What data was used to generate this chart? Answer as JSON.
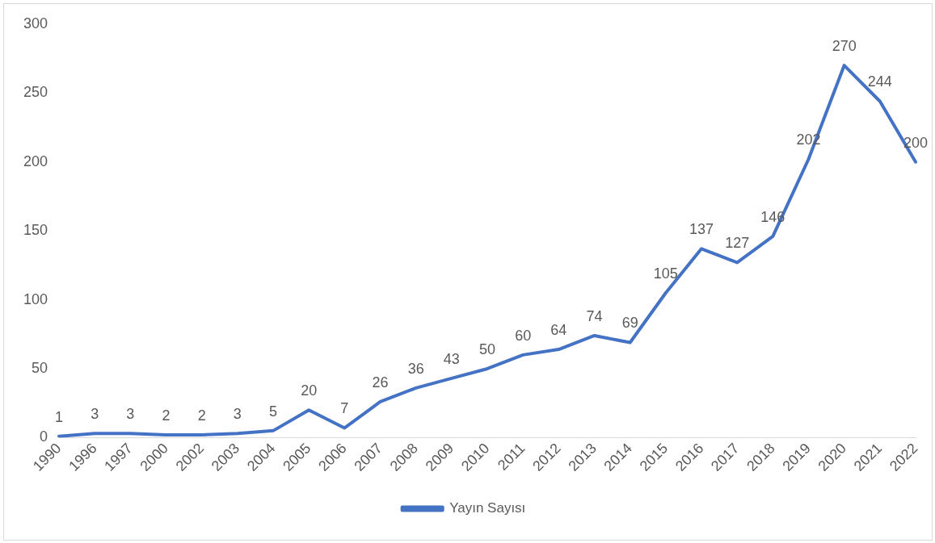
{
  "chart_data": {
    "type": "line",
    "categories": [
      "1990",
      "1996",
      "1997",
      "2000",
      "2002",
      "2003",
      "2004",
      "2005",
      "2006",
      "2007",
      "2008",
      "2009",
      "2010",
      "2011",
      "2012",
      "2013",
      "2014",
      "2015",
      "2016",
      "2017",
      "2018",
      "2019",
      "2020",
      "2021",
      "2022"
    ],
    "series": [
      {
        "name": "Yayın Sayısı",
        "color": "#4472c4",
        "values": [
          1,
          3,
          3,
          2,
          2,
          3,
          5,
          20,
          7,
          26,
          36,
          43,
          50,
          60,
          64,
          74,
          69,
          105,
          137,
          127,
          146,
          202,
          270,
          244,
          200
        ]
      }
    ],
    "ylim": [
      0,
      300
    ],
    "yticks": [
      0,
      50,
      100,
      150,
      200,
      250,
      300
    ],
    "grid": false,
    "legend": "bottom",
    "data_labels": true,
    "marker": "none",
    "line_style": "solid"
  }
}
